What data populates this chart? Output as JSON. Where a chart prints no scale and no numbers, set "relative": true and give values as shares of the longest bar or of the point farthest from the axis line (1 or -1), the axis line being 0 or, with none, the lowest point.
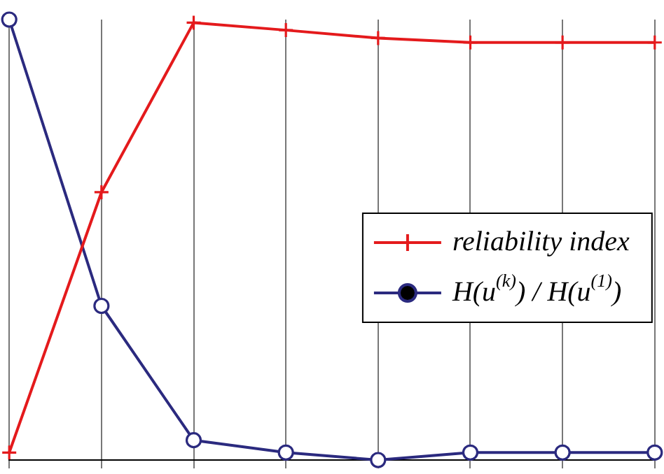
{
  "chart_data": {
    "type": "line",
    "relative": true,
    "grid": true,
    "legend": "right",
    "categories": [
      null,
      null,
      null,
      null,
      null,
      null,
      null,
      null
    ],
    "series": [
      {
        "name": "reliability index",
        "color": "#e41a1c",
        "marker": "cross",
        "values": [
          0.017,
          0.608,
          0.993,
          0.976,
          0.958,
          0.948,
          0.948,
          0.948
        ]
      },
      {
        "name": "H(u$^{(k)}$) / H(u$^{(1)}$)",
        "color": "#2b2a7f",
        "marker": "circle",
        "values": [
          1,
          0.35,
          0.045,
          0.017,
          0,
          0.017,
          0.017,
          0.017
        ]
      }
    ]
  }
}
